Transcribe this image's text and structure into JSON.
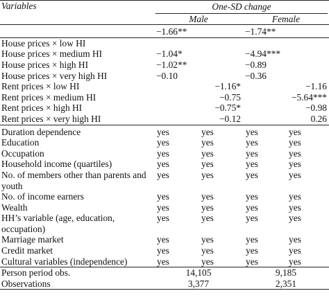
{
  "header": {
    "variables_label": "Variables",
    "group_label": "One-SD change",
    "male_label": "Male",
    "female_label": "Female"
  },
  "baseline_row": {
    "label": "",
    "male_1": "−1.66**",
    "male_2": "",
    "female_1": "−1.74**",
    "female_2": ""
  },
  "house_rows": [
    {
      "label": "House prices × low HI",
      "male_1": "",
      "male_2": "",
      "female_1": "",
      "female_2": ""
    },
    {
      "label": "House prices × medium HI",
      "male_1": "−1.04*",
      "male_2": "",
      "female_1": "−4.94***",
      "female_2": ""
    },
    {
      "label": "House prices × high HI",
      "male_1": "−1.02**",
      "male_2": "",
      "female_1": "−0.89",
      "female_2": ""
    },
    {
      "label": "House prices × very high HI",
      "male_1": "−0.10",
      "male_2": "",
      "female_1": "−0.36",
      "female_2": ""
    }
  ],
  "rent_rows": [
    {
      "label": "Rent prices × low HI",
      "male_1": "",
      "male_2": "−1.16*",
      "female_1": "",
      "female_2": "−1.16"
    },
    {
      "label": "Rent prices × medium HI",
      "male_1": "",
      "male_2": "−0.75",
      "female_1": "",
      "female_2": "−5.64***"
    },
    {
      "label": "Rent prices × high HI",
      "male_1": "",
      "male_2": "−0.75*",
      "female_1": "",
      "female_2": "−0.98"
    },
    {
      "label": "Rent prices × very high HI",
      "male_1": "",
      "male_2": "−0.12",
      "female_1": "",
      "female_2": "0.26"
    }
  ],
  "control_rows": [
    {
      "label": "Duration dependence",
      "v": [
        "yes",
        "yes",
        "yes",
        "yes"
      ]
    },
    {
      "label": "Education",
      "v": [
        "yes",
        "yes",
        "yes",
        "yes"
      ]
    },
    {
      "label": "Occupation",
      "v": [
        "yes",
        "yes",
        "yes",
        "yes"
      ]
    },
    {
      "label": "Household income (quartiles)",
      "v": [
        "yes",
        "yes",
        "yes",
        "yes"
      ]
    },
    {
      "label": "No. of members other than parents and youth",
      "v": [
        "yes",
        "yes",
        "yes",
        "yes"
      ]
    },
    {
      "label": "No. of income earners",
      "v": [
        "yes",
        "yes",
        "yes",
        "yes"
      ]
    },
    {
      "label": "Wealth",
      "v": [
        "yes",
        "yes",
        "yes",
        "yes"
      ]
    },
    {
      "label": "HH’s variable (age, education, occupation)",
      "v": [
        "yes",
        "yes",
        "yes",
        "yes"
      ]
    },
    {
      "label": "Marriage market",
      "v": [
        "yes",
        "yes",
        "yes",
        "yes"
      ]
    },
    {
      "label": "Credit market",
      "v": [
        "yes",
        "yes",
        "yes",
        "yes"
      ]
    },
    {
      "label": "Cultural variables (independence)",
      "v": [
        "yes",
        "yes",
        "yes",
        "yes"
      ]
    }
  ],
  "summary_rows": [
    {
      "label": "Person period obs.",
      "male": "14,105",
      "female": "9,185"
    },
    {
      "label": "Observations",
      "male": "3,377",
      "female": "2,351"
    }
  ]
}
